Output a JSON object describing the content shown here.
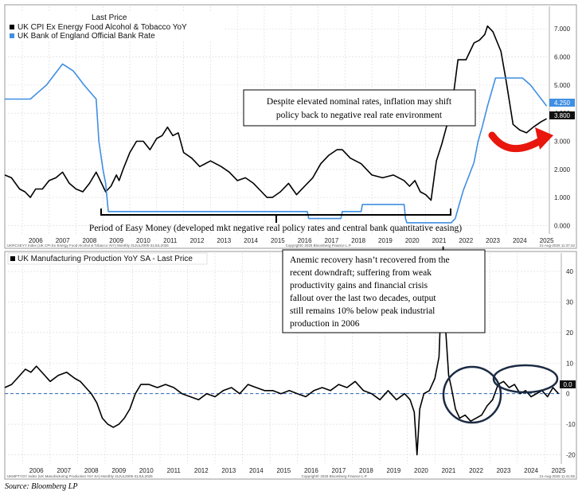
{
  "chart_data": [
    {
      "type": "line",
      "legend_title": "Last Price",
      "legend_placement": "top-left",
      "x_ticks": [
        "2006",
        "2007",
        "2008",
        "2009",
        "2010",
        "2011",
        "2012",
        "2013",
        "2014",
        "2015",
        "2016",
        "2017",
        "2018",
        "2019",
        "2020",
        "2021",
        "2022",
        "2023",
        "2024",
        "2025"
      ],
      "y_ticks": [
        "0.000",
        "1.000",
        "2.000",
        "3.000",
        "4.000",
        "5.000",
        "6.000",
        "7.000"
      ],
      "ylim": [
        -0.3,
        7.8
      ],
      "xlim": [
        2005.35,
        2025.6
      ],
      "grid": true,
      "series": [
        {
          "name": "UK CPI Ex Energy Food Alcohol & Tobacco YoY",
          "color": "#000000",
          "last_value_label": "3.800",
          "x": [
            2005.35,
            2005.6,
            2005.9,
            2006.1,
            2006.3,
            2006.5,
            2006.75,
            2007.0,
            2007.25,
            2007.5,
            2007.75,
            2008.0,
            2008.25,
            2008.5,
            2008.75,
            2008.9,
            2009.1,
            2009.3,
            2009.5,
            2009.6,
            2009.75,
            2010.0,
            2010.25,
            2010.5,
            2010.75,
            2011.0,
            2011.2,
            2011.4,
            2011.6,
            2011.8,
            2012.0,
            2012.3,
            2012.6,
            2013.0,
            2013.4,
            2013.7,
            2014.0,
            2014.3,
            2014.6,
            2014.9,
            2015.1,
            2015.3,
            2015.6,
            2015.9,
            2016.2,
            2016.5,
            2016.8,
            2017.1,
            2017.4,
            2017.7,
            2017.9,
            2018.2,
            2018.6,
            2019.0,
            2019.4,
            2019.8,
            2020.2,
            2020.4,
            2020.6,
            2020.8,
            2021.0,
            2021.2,
            2021.4,
            2021.6,
            2021.8,
            2022.0,
            2022.2,
            2022.5,
            2022.8,
            2023.0,
            2023.2,
            2023.3,
            2023.5,
            2023.8,
            2024.0,
            2024.25,
            2024.5,
            2024.75,
            2025.0,
            2025.3,
            2025.5
          ],
          "y": [
            1.8,
            1.7,
            1.3,
            1.2,
            1.0,
            1.3,
            1.3,
            1.6,
            1.7,
            1.9,
            1.5,
            1.3,
            1.2,
            1.5,
            1.9,
            1.6,
            1.2,
            1.4,
            1.8,
            1.6,
            2.0,
            2.6,
            3.0,
            3.0,
            2.7,
            3.1,
            3.2,
            3.5,
            3.2,
            3.3,
            2.6,
            2.4,
            2.1,
            2.3,
            2.1,
            1.9,
            1.6,
            1.7,
            1.5,
            1.2,
            1.0,
            1.0,
            1.2,
            1.5,
            1.1,
            1.4,
            1.7,
            2.2,
            2.5,
            2.7,
            2.7,
            2.4,
            2.2,
            1.8,
            1.7,
            1.8,
            1.6,
            1.4,
            1.6,
            1.2,
            1.1,
            0.9,
            2.3,
            2.9,
            3.6,
            4.4,
            5.9,
            5.9,
            6.5,
            6.6,
            6.8,
            7.1,
            6.9,
            6.2,
            5.1,
            3.6,
            3.4,
            3.3,
            3.5,
            3.7,
            3.8
          ]
        },
        {
          "name": "UK Bank of England Official Bank Rate",
          "color": "#3f8fe2",
          "last_value_label": "4.250",
          "x": [
            2005.35,
            2006.3,
            2006.6,
            2006.9,
            2007.1,
            2007.5,
            2007.9,
            2008.1,
            2008.3,
            2008.75,
            2008.85,
            2009.0,
            2009.1,
            2009.2,
            2016.6,
            2016.65,
            2017.85,
            2017.9,
            2018.6,
            2018.65,
            2020.2,
            2020.25,
            2020.3,
            2021.95,
            2022.1,
            2022.25,
            2022.4,
            2022.6,
            2022.8,
            2022.95,
            2023.1,
            2023.3,
            2023.6,
            2024.6,
            2024.9,
            2025.1,
            2025.3,
            2025.5
          ],
          "y": [
            4.5,
            4.5,
            4.75,
            5.0,
            5.25,
            5.75,
            5.5,
            5.25,
            5.0,
            4.5,
            3.0,
            2.0,
            1.5,
            0.5,
            0.5,
            0.25,
            0.25,
            0.5,
            0.5,
            0.75,
            0.75,
            0.25,
            0.1,
            0.1,
            0.25,
            0.75,
            1.25,
            1.75,
            2.25,
            3.0,
            3.5,
            4.25,
            5.25,
            5.25,
            5.0,
            4.75,
            4.5,
            4.25
          ]
        }
      ]
    },
    {
      "type": "line",
      "title": "UK Manufacturing Production YoY SA - Last Price",
      "x_ticks": [
        "2006",
        "2007",
        "2008",
        "2009",
        "2010",
        "2011",
        "2012",
        "2013",
        "2014",
        "2015",
        "2016",
        "2017",
        "2018",
        "2019",
        "2020",
        "2021",
        "2022",
        "2023",
        "2024",
        "2025"
      ],
      "y_ticks": [
        "-20",
        "-10",
        "0",
        "10",
        "20",
        "30",
        "40"
      ],
      "ylim": [
        -23,
        46
      ],
      "xlim": [
        2005.35,
        2025.6
      ],
      "grid": true,
      "reference_line": 0,
      "series": [
        {
          "name": "UK Manufacturing Production YoY SA",
          "color": "#000000",
          "last_value_label": "0.0",
          "x": [
            2005.35,
            2005.6,
            2005.9,
            2006.1,
            2006.3,
            2006.5,
            2006.8,
            2007.0,
            2007.3,
            2007.6,
            2007.9,
            2008.1,
            2008.3,
            2008.5,
            2008.7,
            2008.9,
            2009.1,
            2009.3,
            2009.5,
            2009.7,
            2009.9,
            2010.1,
            2010.3,
            2010.6,
            2010.9,
            2011.2,
            2011.5,
            2011.8,
            2012.1,
            2012.4,
            2012.7,
            2013.0,
            2013.3,
            2013.6,
            2013.9,
            2014.2,
            2014.5,
            2014.8,
            2015.1,
            2015.4,
            2015.7,
            2016.0,
            2016.3,
            2016.6,
            2016.9,
            2017.2,
            2017.5,
            2017.8,
            2018.1,
            2018.4,
            2018.7,
            2019.0,
            2019.3,
            2019.6,
            2019.9,
            2020.1,
            2020.25,
            2020.35,
            2020.45,
            2020.6,
            2020.8,
            2021.0,
            2021.15,
            2021.3,
            2021.4,
            2021.5,
            2021.6,
            2021.75,
            2021.9,
            2022.1,
            2022.3,
            2022.5,
            2022.7,
            2022.9,
            2023.1,
            2023.3,
            2023.5,
            2023.7,
            2023.9,
            2024.1,
            2024.3,
            2024.5,
            2024.7,
            2024.9,
            2025.1,
            2025.3,
            2025.5
          ],
          "y": [
            2,
            3,
            6,
            8,
            7,
            9,
            6,
            4,
            6,
            7,
            5,
            4,
            2,
            0,
            -3,
            -8,
            -10,
            -11,
            -10,
            -8,
            -5,
            0,
            3,
            3,
            2,
            3,
            2,
            0,
            -1,
            -2,
            0,
            -1,
            1,
            2,
            0,
            3,
            2,
            1,
            1,
            0,
            1,
            0,
            -1,
            1,
            2,
            1,
            3,
            2,
            4,
            1,
            0,
            -2,
            1,
            -2,
            0,
            -2,
            -6,
            -20,
            -5,
            0,
            1,
            5,
            12,
            48,
            20,
            6,
            2,
            -5,
            -8,
            -7,
            -9,
            -8,
            -7,
            -4,
            -2,
            3,
            4,
            2,
            3,
            0,
            1,
            -1,
            0,
            1,
            -1,
            2,
            0
          ]
        }
      ]
    }
  ],
  "annotations": {
    "policy_box": [
      "Despite elevated nominal rates, inflation may shift",
      "policy back to negative real rate environment"
    ],
    "easy_money": "Period of Easy Money (developed mkt negative real policy rates and central bank quantitative easing)",
    "manuf_box": [
      "Anemic recovery hasn’t recovered from the",
      "recent downdraft; suffering from weak",
      "productivity gains and financial crisis",
      "fallout over the last two decades, output",
      "still remains 10% below peak industrial",
      "production in 2006"
    ]
  },
  "footers": {
    "top_left": "UKRCXEYY Index (UK CPI Ex Energy Food Alcohol & Tobacco YoY)   Monthly 31JUL2005-31JUL2025",
    "top_center": "Copyright© 2025 Bloomberg Finance L.P.",
    "top_right": "21-Aug-2025 11:37:42",
    "bottom_left": "UKMPTYOY Index (UK Manufacturing Production YoY SA)   Monthly 31JUL2005-31JUL2025",
    "bottom_center": "Copyright© 2025 Bloomberg Finance L.P.",
    "bottom_right": "21-Aug-2025 11:41:55"
  },
  "source": "Source: Bloomberg LP",
  "colors": {
    "accent_blue": "#3f8fe2",
    "arrow_red": "#e8160c",
    "ellipse": "#1c2b44",
    "zero_line": "#2a66b8"
  }
}
